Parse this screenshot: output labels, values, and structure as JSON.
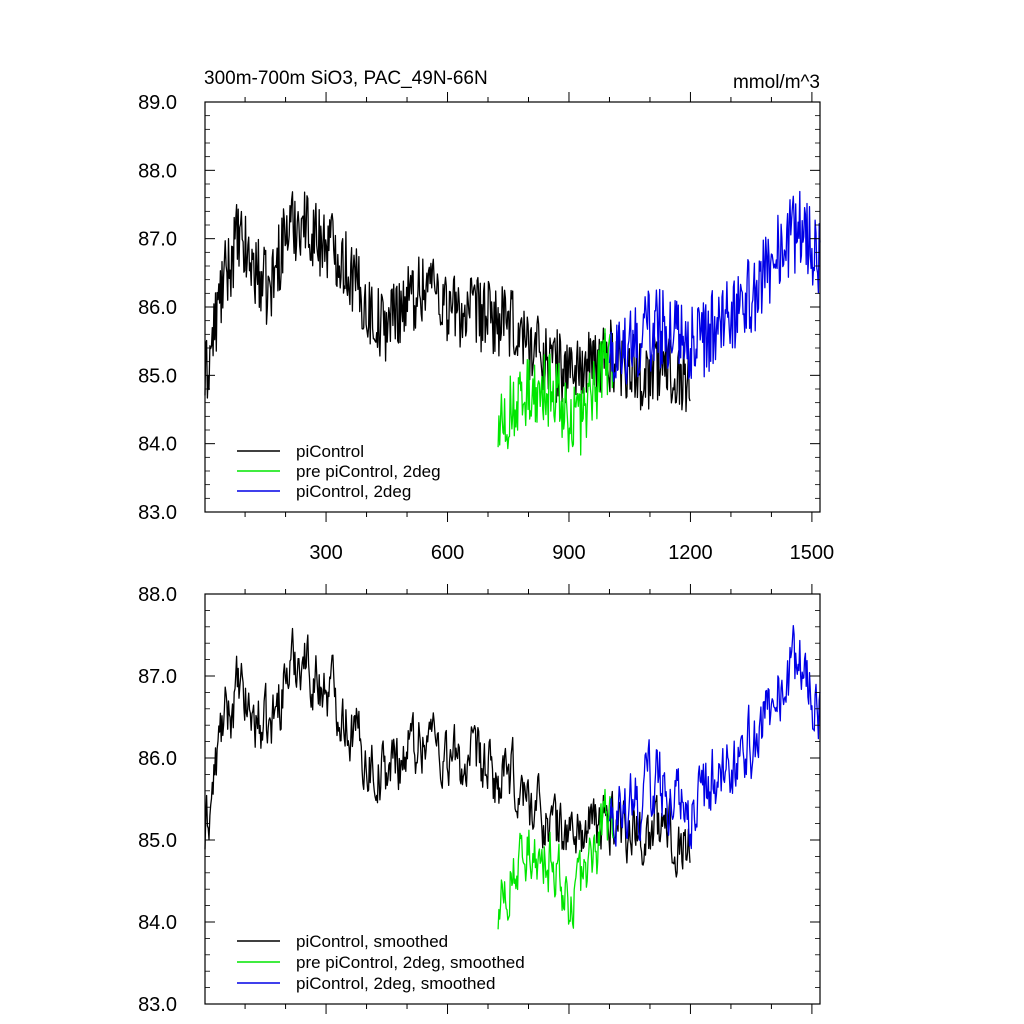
{
  "colors": {
    "piControl": "#000000",
    "pre_piControl_2deg": "#00e600",
    "piControl_2deg": "#0000e6"
  },
  "chart_data": [
    {
      "type": "line",
      "title": "300m-700m SiO3, PAC_49N-66N",
      "units": "mmol/m^3",
      "xlim": [
        1,
        1520
      ],
      "ylim": [
        83.0,
        89.0
      ],
      "xticks": [
        300,
        600,
        900,
        1200,
        1500
      ],
      "xtick_labels": [
        "300",
        "600",
        "900",
        "1200",
        "1500"
      ],
      "yticks": [
        83.0,
        84.0,
        85.0,
        86.0,
        87.0,
        88.0,
        89.0
      ],
      "ytick_labels": [
        "83.0",
        "84.0",
        "85.0",
        "86.0",
        "87.0",
        "88.0",
        "89.0"
      ],
      "legend_position": "lower-left",
      "legend": [
        "piControl",
        "pre piControl, 2deg",
        "piControl, 2deg"
      ],
      "series": [
        {
          "name": "piControl",
          "color": "#000000",
          "x_range": [
            1,
            1200
          ],
          "anchors": [
            [
              1,
              84.9
            ],
            [
              40,
              86.2
            ],
            [
              80,
              87.0
            ],
            [
              120,
              86.6
            ],
            [
              160,
              86.2
            ],
            [
              200,
              87.1
            ],
            [
              240,
              87.3
            ],
            [
              280,
              87.0
            ],
            [
              320,
              86.9
            ],
            [
              360,
              86.5
            ],
            [
              400,
              86.0
            ],
            [
              440,
              85.7
            ],
            [
              480,
              86.0
            ],
            [
              520,
              86.2
            ],
            [
              560,
              86.4
            ],
            [
              600,
              86.0
            ],
            [
              640,
              85.9
            ],
            [
              680,
              85.9
            ],
            [
              720,
              85.8
            ],
            [
              760,
              85.7
            ],
            [
              800,
              85.5
            ],
            [
              840,
              85.3
            ],
            [
              880,
              85.1
            ],
            [
              920,
              85.1
            ],
            [
              960,
              85.1
            ],
            [
              1000,
              85.3
            ],
            [
              1040,
              85.2
            ],
            [
              1080,
              85.0
            ],
            [
              1120,
              85.1
            ],
            [
              1160,
              85.1
            ],
            [
              1200,
              84.9
            ]
          ],
          "amplitude": 0.55
        },
        {
          "name": "pre piControl, 2deg",
          "color": "#00e600",
          "x_range": [
            725,
            1010
          ],
          "anchors": [
            [
              725,
              84.1
            ],
            [
              760,
              84.5
            ],
            [
              800,
              84.7
            ],
            [
              840,
              84.8
            ],
            [
              870,
              84.8
            ],
            [
              900,
              84.4
            ],
            [
              930,
              84.3
            ],
            [
              960,
              84.7
            ],
            [
              990,
              85.2
            ],
            [
              1010,
              85.4
            ]
          ],
          "amplitude": 0.55
        },
        {
          "name": "piControl, 2deg",
          "color": "#0000e6",
          "x_range": [
            1000,
            1520
          ],
          "anchors": [
            [
              1000,
              85.3
            ],
            [
              1040,
              85.4
            ],
            [
              1080,
              85.6
            ],
            [
              1120,
              85.7
            ],
            [
              1160,
              85.7
            ],
            [
              1200,
              85.5
            ],
            [
              1240,
              85.5
            ],
            [
              1280,
              85.9
            ],
            [
              1320,
              86.0
            ],
            [
              1360,
              86.2
            ],
            [
              1400,
              86.7
            ],
            [
              1440,
              87.0
            ],
            [
              1480,
              87.2
            ],
            [
              1500,
              86.9
            ],
            [
              1520,
              86.6
            ]
          ],
          "amplitude": 0.6
        }
      ]
    },
    {
      "type": "line",
      "title": "",
      "xlim": [
        1,
        1520
      ],
      "ylim": [
        83.0,
        88.0
      ],
      "xticks": [
        300,
        600,
        900,
        1200,
        1500
      ],
      "yticks": [
        83.0,
        84.0,
        85.0,
        86.0,
        87.0,
        88.0
      ],
      "ytick_labels": [
        "83.0",
        "84.0",
        "85.0",
        "86.0",
        "87.0",
        "88.0"
      ],
      "legend_position": "lower-left",
      "legend": [
        "piControl, smoothed",
        "pre piControl, 2deg, smoothed",
        "piControl, 2deg, smoothed"
      ],
      "series": [
        {
          "name": "piControl, smoothed",
          "color": "#000000",
          "x_range": [
            1,
            1200
          ],
          "anchors": [
            [
              1,
              85.0
            ],
            [
              40,
              86.3
            ],
            [
              80,
              86.8
            ],
            [
              120,
              86.5
            ],
            [
              160,
              86.3
            ],
            [
              200,
              87.0
            ],
            [
              240,
              87.3
            ],
            [
              280,
              86.9
            ],
            [
              320,
              86.8
            ],
            [
              360,
              86.4
            ],
            [
              400,
              86.0
            ],
            [
              440,
              85.8
            ],
            [
              480,
              86.0
            ],
            [
              520,
              86.2
            ],
            [
              560,
              86.3
            ],
            [
              600,
              86.0
            ],
            [
              640,
              85.9
            ],
            [
              680,
              85.9
            ],
            [
              720,
              85.7
            ],
            [
              760,
              85.7
            ],
            [
              800,
              85.5
            ],
            [
              840,
              85.3
            ],
            [
              880,
              85.1
            ],
            [
              920,
              85.1
            ],
            [
              960,
              85.1
            ],
            [
              1000,
              85.3
            ],
            [
              1040,
              85.2
            ],
            [
              1080,
              85.1
            ],
            [
              1120,
              85.1
            ],
            [
              1160,
              85.1
            ],
            [
              1200,
              84.9
            ]
          ],
          "amplitude": 0.45
        },
        {
          "name": "pre piControl, 2deg, smoothed",
          "color": "#00e600",
          "x_range": [
            725,
            1010
          ],
          "anchors": [
            [
              725,
              84.0
            ],
            [
              760,
              84.6
            ],
            [
              800,
              84.8
            ],
            [
              840,
              84.8
            ],
            [
              870,
              84.7
            ],
            [
              900,
              84.3
            ],
            [
              930,
              84.4
            ],
            [
              960,
              84.7
            ],
            [
              990,
              85.2
            ],
            [
              1010,
              85.4
            ]
          ],
          "amplitude": 0.45
        },
        {
          "name": "piControl, 2deg, smoothed",
          "color": "#0000e6",
          "x_range": [
            1000,
            1520
          ],
          "anchors": [
            [
              1000,
              85.3
            ],
            [
              1040,
              85.4
            ],
            [
              1080,
              85.6
            ],
            [
              1120,
              85.7
            ],
            [
              1160,
              85.6
            ],
            [
              1200,
              85.4
            ],
            [
              1240,
              85.5
            ],
            [
              1280,
              85.9
            ],
            [
              1320,
              86.0
            ],
            [
              1360,
              86.2
            ],
            [
              1400,
              86.7
            ],
            [
              1440,
              87.0
            ],
            [
              1480,
              87.2
            ],
            [
              1500,
              86.8
            ],
            [
              1520,
              86.5
            ]
          ],
          "amplitude": 0.5
        }
      ]
    }
  ]
}
